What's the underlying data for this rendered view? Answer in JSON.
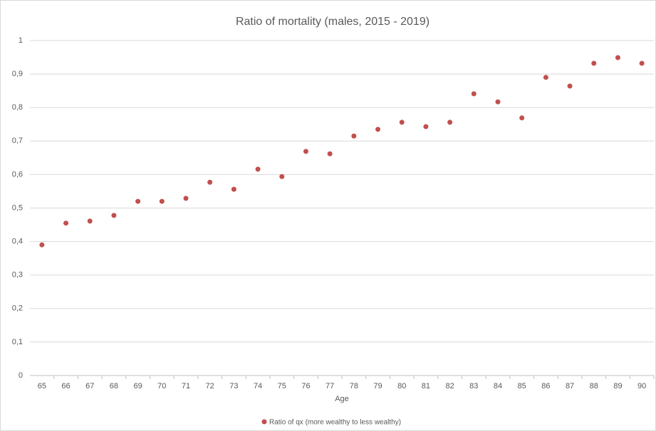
{
  "chart_data": {
    "type": "scatter",
    "title": "Ratio of mortality (males, 2015 - 2019)",
    "x_label": "Age",
    "categories": [
      65,
      66,
      67,
      68,
      69,
      70,
      71,
      72,
      73,
      74,
      75,
      76,
      77,
      78,
      79,
      80,
      81,
      82,
      83,
      84,
      85,
      86,
      87,
      88,
      89,
      90
    ],
    "series": [
      {
        "name": "Ratio of qx (more wealthy to less wealthy)",
        "color": "#c0504d",
        "values": [
          0.39,
          0.455,
          0.461,
          0.478,
          0.52,
          0.52,
          0.529,
          0.577,
          0.556,
          0.616,
          0.594,
          0.669,
          0.662,
          0.715,
          0.735,
          0.756,
          0.743,
          0.756,
          0.841,
          0.817,
          0.769,
          0.89,
          0.864,
          0.932,
          0.949,
          0.932
        ]
      }
    ],
    "ylim": [
      0,
      1
    ],
    "yticks": [
      0,
      {
        "value": 0.1,
        "label": "0,1"
      },
      {
        "value": 0.2,
        "label": "0,2"
      },
      {
        "value": 0.3,
        "label": "0,3"
      },
      {
        "value": 0.4,
        "label": "0,4"
      },
      {
        "value": 0.5,
        "label": "0,5"
      },
      {
        "value": 0.6,
        "label": "0,6"
      },
      {
        "value": 0.7,
        "label": "0,7"
      },
      {
        "value": 0.8,
        "label": "0,8"
      },
      {
        "value": 0.9,
        "label": "0,9"
      },
      1
    ],
    "grid": true,
    "legend": "bottom"
  }
}
